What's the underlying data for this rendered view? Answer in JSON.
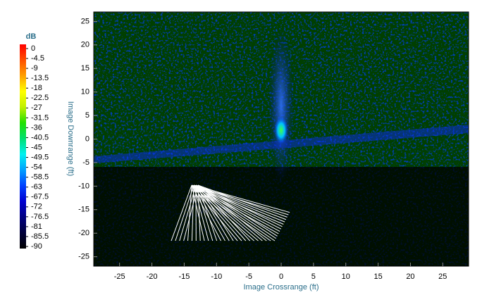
{
  "chart_data": {
    "type": "heatmap",
    "xlabel": "Image Crossrange (ft)",
    "ylabel": "Image Downrange (ft)",
    "xlim": [
      -29,
      29
    ],
    "xticks": [
      -25,
      -20,
      -15,
      -10,
      -5,
      0,
      5,
      10,
      15,
      20,
      25
    ],
    "ylim": [
      -27,
      27
    ],
    "yticks": [
      -25,
      -20,
      -15,
      -10,
      -5,
      0,
      5,
      10,
      15,
      20,
      25
    ],
    "colorbar": {
      "label": "dB",
      "clim": [
        -90,
        0
      ],
      "ticks": [
        0,
        -4.5,
        -9,
        -13.5,
        -18,
        -22.5,
        -27,
        -31.5,
        -36,
        -40.5,
        -45,
        -49.5,
        -54,
        -58.5,
        -63,
        -67.5,
        -72,
        -76.5,
        -81,
        -85.5,
        -90
      ],
      "colors": [
        "#000000",
        "#00003a",
        "#000080",
        "#0000d0",
        "#0040ff",
        "#00a0ff",
        "#00f0f0",
        "#00e070",
        "#20e000",
        "#c0f000",
        "#ffff00",
        "#ffa000",
        "#ff5000",
        "#ff0000"
      ]
    }
  }
}
